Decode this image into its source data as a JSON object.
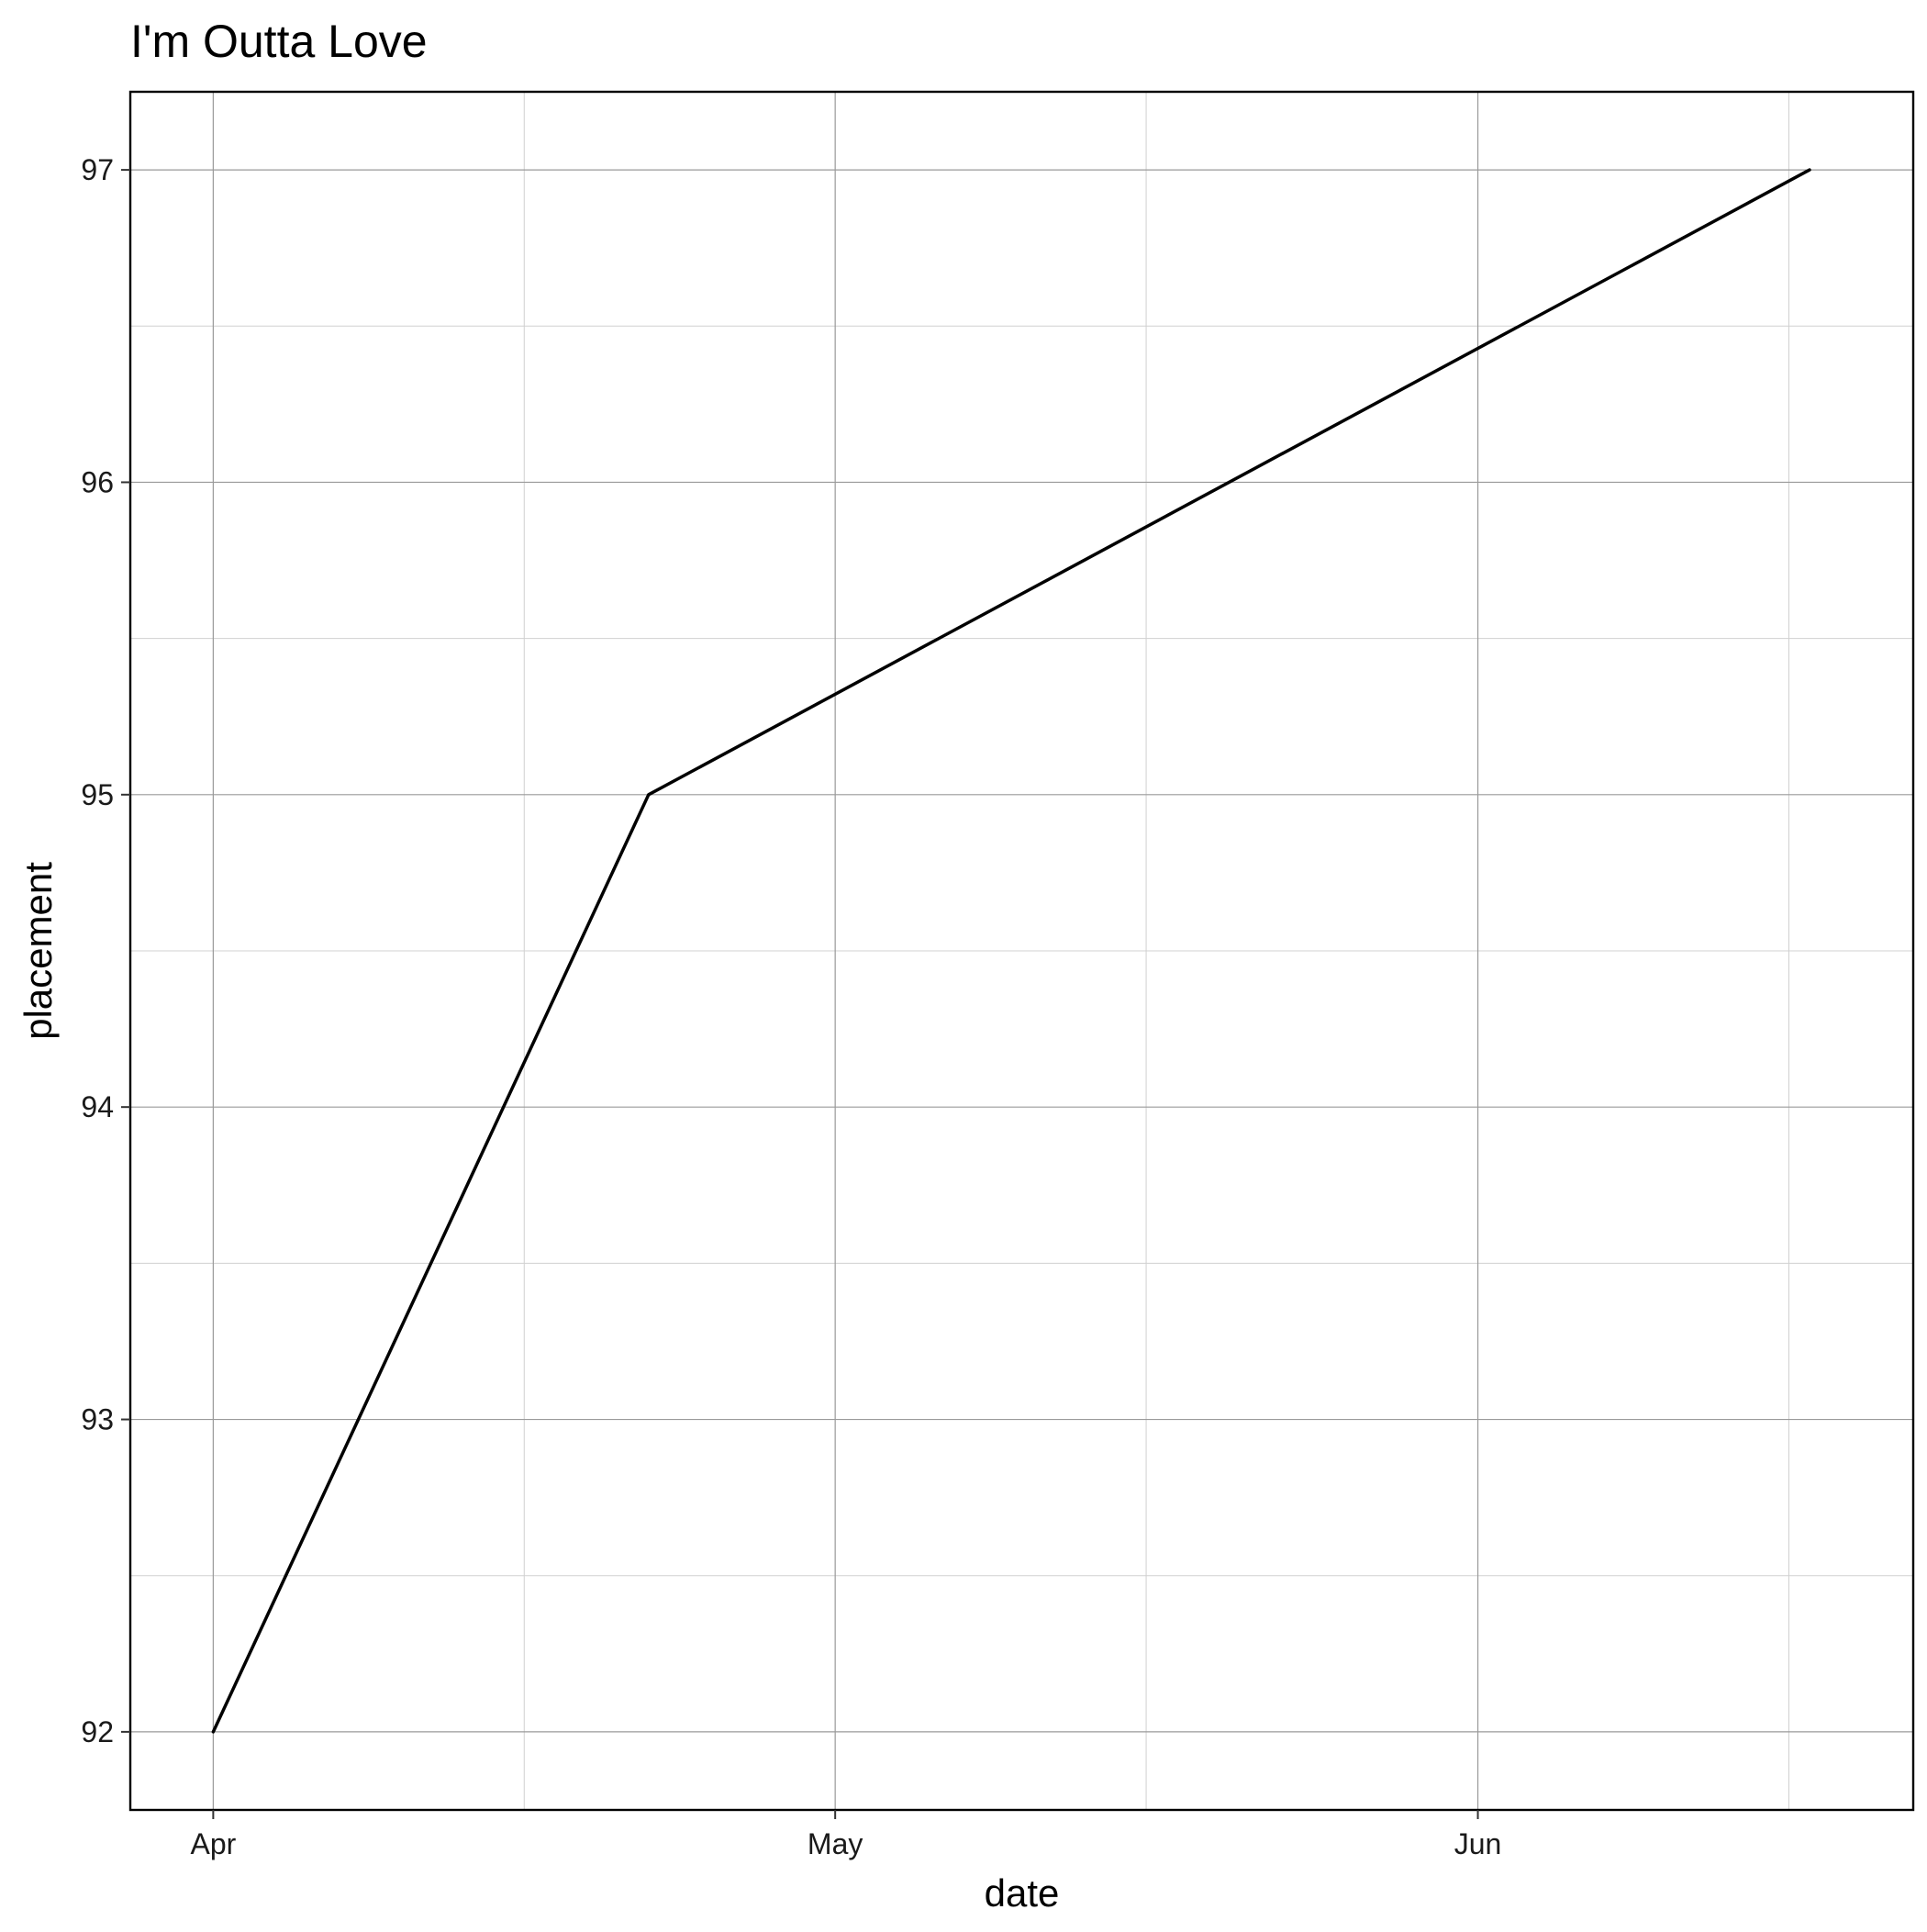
{
  "chart_data": {
    "type": "line",
    "title": "I'm Outta Love",
    "xlabel": "date",
    "ylabel": "placement",
    "x_axis": {
      "scale": "date",
      "range": [
        "2000-03-28",
        "2000-06-22"
      ],
      "ticks": [
        {
          "date": "2000-04-01",
          "label": "Apr"
        },
        {
          "date": "2000-05-01",
          "label": "May"
        },
        {
          "date": "2000-06-01",
          "label": "Jun"
        }
      ],
      "minor_ticks": [
        "2000-04-16",
        "2000-05-16",
        "2000-06-16"
      ]
    },
    "y_axis": {
      "range": [
        91.75,
        97.25
      ],
      "ticks": [
        92,
        93,
        94,
        95,
        96,
        97
      ],
      "tick_labels": [
        "92",
        "93",
        "94",
        "95",
        "96",
        "97"
      ],
      "minor_ticks": [
        92.5,
        93.5,
        94.5,
        95.5,
        96.5
      ]
    },
    "grid": true,
    "legend": "none",
    "series": [
      {
        "color": "#000000",
        "points": [
          {
            "x": "2000-04-01",
            "y": 92
          },
          {
            "x": "2000-04-22",
            "y": 95
          },
          {
            "x": "2000-06-17",
            "y": 97
          }
        ]
      }
    ]
  }
}
